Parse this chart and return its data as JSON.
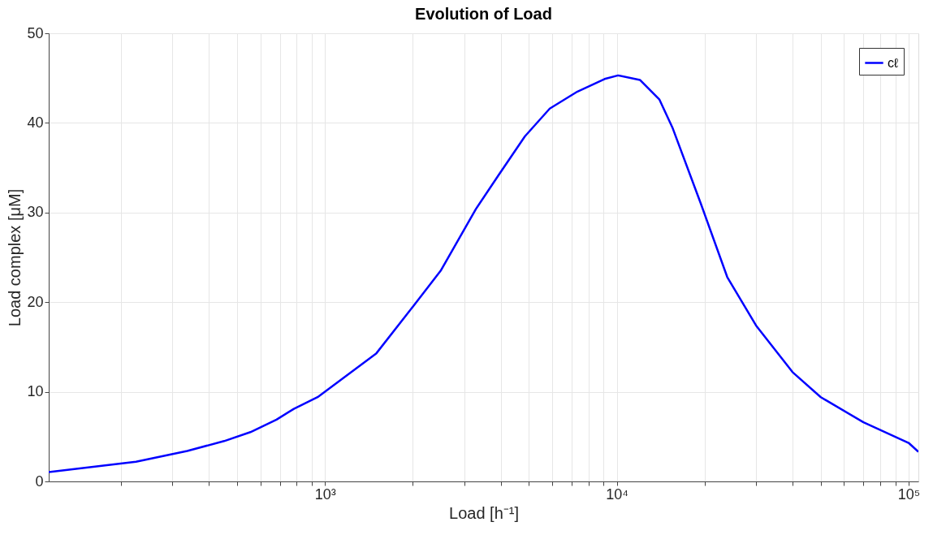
{
  "chart_data": {
    "type": "line",
    "title": "Evolution of Load",
    "xlabel": "Load [h⁻¹]",
    "ylabel": "Load complex [μM]",
    "log": "x",
    "grid": true,
    "legend": "top right",
    "line_style": "solid",
    "marker": "none",
    "xlim": [
      113,
      108000
    ],
    "ylim": [
      0,
      50
    ],
    "xticks": [
      {
        "value": 200,
        "label": null
      },
      {
        "value": 300,
        "label": null
      },
      {
        "value": 400,
        "label": null
      },
      {
        "value": 500,
        "label": null
      },
      {
        "value": 600,
        "label": null
      },
      {
        "value": 700,
        "label": null
      },
      {
        "value": 800,
        "label": null
      },
      {
        "value": 900,
        "label": null
      },
      {
        "value": 1000,
        "label": "10³"
      },
      {
        "value": 2000,
        "label": null
      },
      {
        "value": 3000,
        "label": null
      },
      {
        "value": 4000,
        "label": null
      },
      {
        "value": 5000,
        "label": null
      },
      {
        "value": 6000,
        "label": null
      },
      {
        "value": 7000,
        "label": null
      },
      {
        "value": 8000,
        "label": null
      },
      {
        "value": 9000,
        "label": null
      },
      {
        "value": 10000,
        "label": "10⁴"
      },
      {
        "value": 20000,
        "label": null
      },
      {
        "value": 30000,
        "label": null
      },
      {
        "value": 40000,
        "label": null
      },
      {
        "value": 50000,
        "label": null
      },
      {
        "value": 60000,
        "label": null
      },
      {
        "value": 70000,
        "label": null
      },
      {
        "value": 80000,
        "label": null
      },
      {
        "value": 90000,
        "label": null
      },
      {
        "value": 100000,
        "label": "10⁵"
      }
    ],
    "yticks": [
      0,
      10,
      20,
      30,
      40,
      50
    ],
    "series": [
      {
        "name": "cℓ",
        "color": "#0000ff",
        "x": [
          113,
          225,
          337,
          451,
          555,
          682,
          782,
          943,
          1500,
          2023,
          2490,
          3290,
          3920,
          4840,
          5890,
          7330,
          9080,
          10100,
          12000,
          14000,
          15500,
          19400,
          23900,
          30000,
          40000,
          50000,
          70000,
          100000,
          108000
        ],
        "values": [
          1.05,
          2.2,
          3.4,
          4.5,
          5.5,
          6.9,
          8.1,
          9.4,
          14.3,
          19.7,
          23.5,
          30.4,
          34.1,
          38.5,
          41.6,
          43.5,
          44.9,
          45.3,
          44.8,
          42.6,
          39.5,
          31.0,
          22.8,
          17.4,
          12.2,
          9.4,
          6.6,
          4.3,
          3.3
        ]
      }
    ]
  }
}
